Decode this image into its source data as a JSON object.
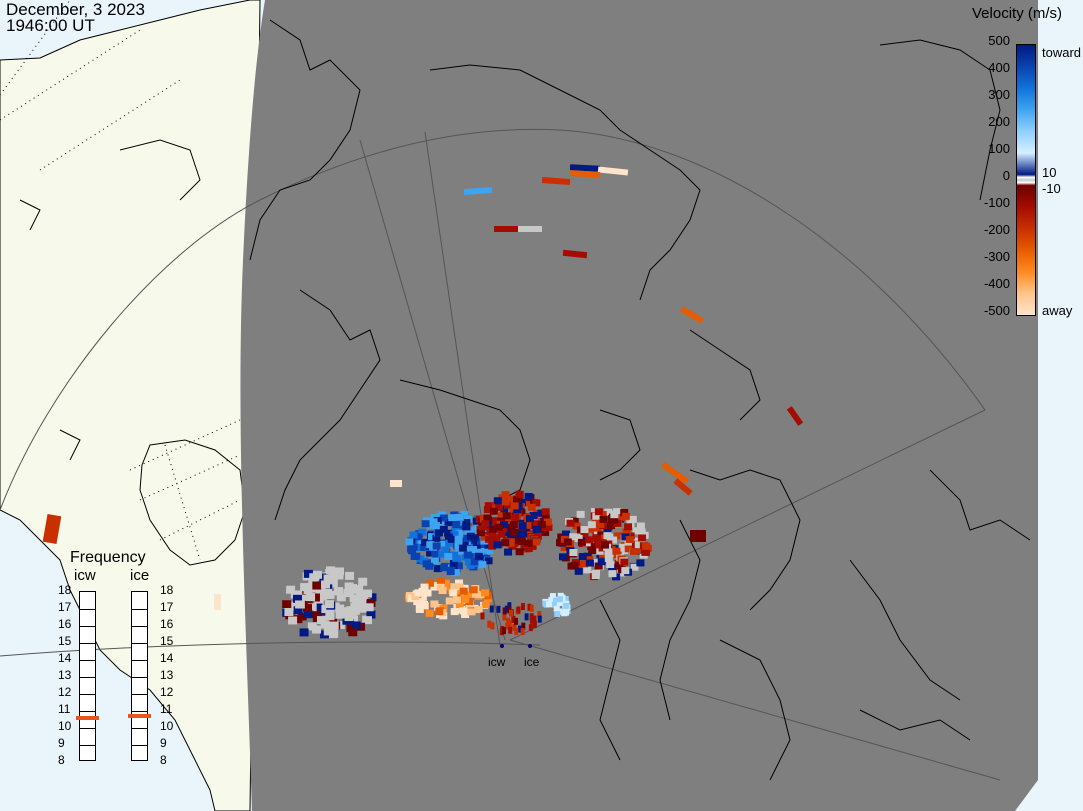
{
  "header": {
    "date": "December, 3 2023",
    "time": "1946:00 UT"
  },
  "colorbar": {
    "title": "Velocity (m/s)",
    "ticks": [
      "500",
      "400",
      "300",
      "200",
      "100",
      "0",
      "-100",
      "-200",
      "-300",
      "-400",
      "-500"
    ],
    "threshold_pos": "10",
    "threshold_neg": "-10",
    "toward_label": "toward",
    "away_label": "away",
    "colors": {
      "toward": [
        "#d4efff",
        "#8fd0ff",
        "#3fa4f0",
        "#1172dc",
        "#0a43b0",
        "#001a84"
      ],
      "away": [
        "#6e0000",
        "#a50c00",
        "#c83000",
        "#e65c00",
        "#ff8a20",
        "#ffc48a",
        "#ffe4cc"
      ],
      "ground_scatter": "#c8c8c8"
    }
  },
  "frequency": {
    "title": "Frequency",
    "radars": [
      "icw",
      "ice"
    ],
    "scale": [
      "18",
      "17",
      "16",
      "15",
      "14",
      "13",
      "12",
      "11",
      "10",
      "9",
      "8"
    ],
    "icw_value_mhz": 10.6,
    "ice_value_mhz": 10.7,
    "marker_color": "#e8561c"
  },
  "radar_labels": [
    "icw",
    "ice"
  ],
  "map": {
    "ocean_color": "#eaf4fb",
    "land_color": "#f7faeb",
    "night_color": "#7f7f7f"
  }
}
